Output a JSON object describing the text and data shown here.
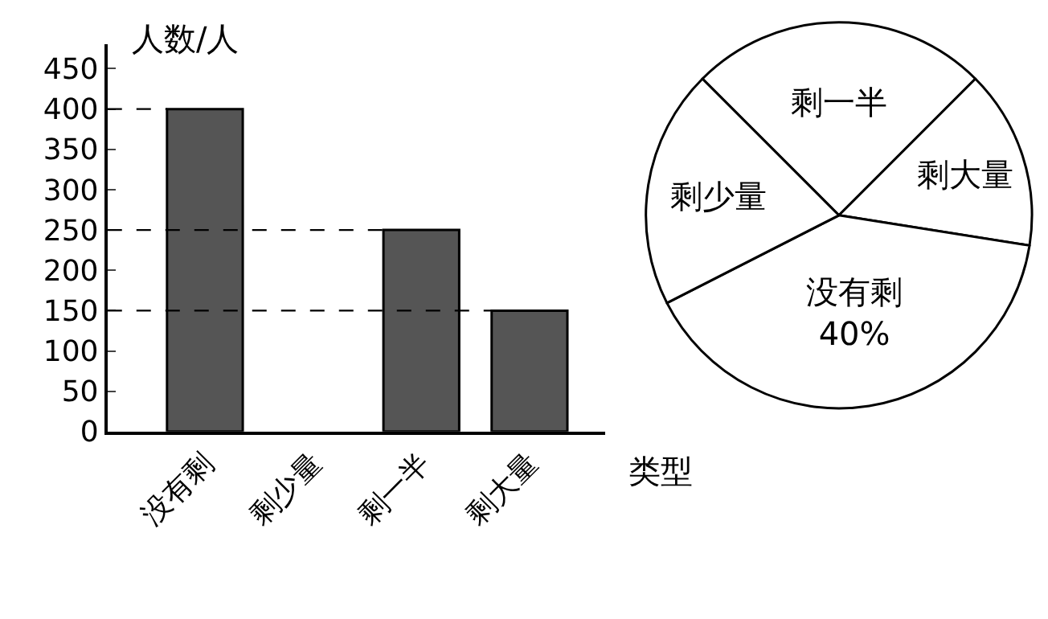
{
  "chart_data": [
    {
      "type": "bar",
      "categories": [
        "没有剩",
        "剩少量",
        "剩一半",
        "剩大量"
      ],
      "values": [
        400,
        null,
        250,
        150
      ],
      "color": "#555555",
      "xlabel": "类型",
      "ylabel": "人数/人",
      "ylim": [
        0,
        480
      ],
      "yticks": [
        0,
        50,
        100,
        150,
        200,
        250,
        300,
        350,
        400,
        450
      ],
      "ref_lines": [
        {
          "axis": "y",
          "value": 400,
          "line_style": "dashed"
        },
        {
          "axis": "y",
          "value": 250,
          "line_style": "dashed"
        },
        {
          "axis": "y",
          "value": 150,
          "line_style": "dashed"
        }
      ]
    },
    {
      "type": "pie",
      "categories": [
        "剩一半",
        "剩大量",
        "没有剩",
        "剩少量"
      ],
      "values": [
        25,
        15,
        40,
        20
      ],
      "colors": [
        "#ffffff",
        "#ffffff",
        "#ffffff",
        "#ffffff"
      ],
      "value_labels": [
        null,
        null,
        "40%",
        null
      ]
    }
  ]
}
